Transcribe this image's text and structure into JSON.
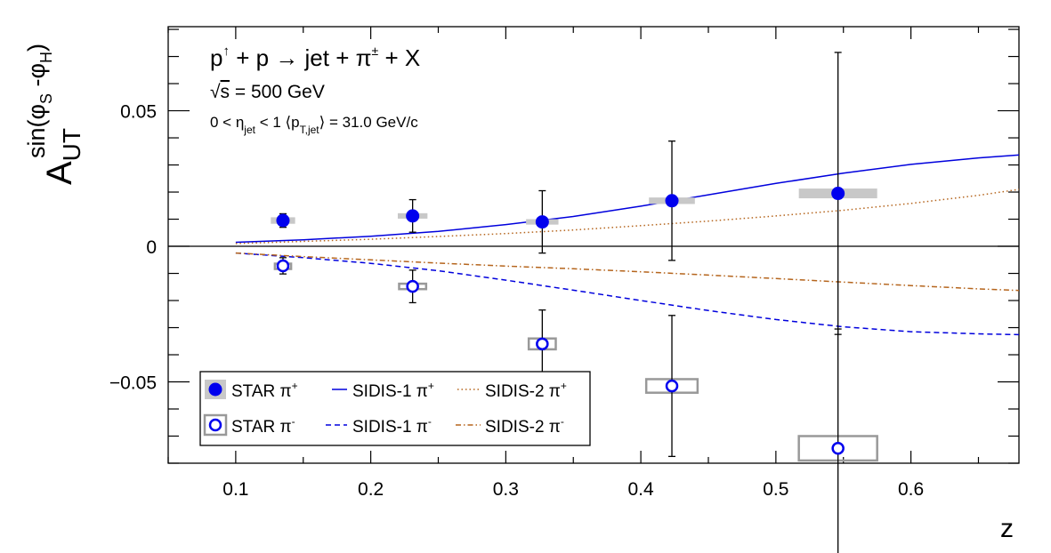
{
  "chart_data": {
    "type": "scatter",
    "xlabel": "z",
    "ylabel": {
      "main": "A",
      "sub": "UT",
      "sup_prefix": "sin(",
      "phi": "φ",
      "s": "S",
      "minus": " -",
      "h": "H",
      "close": ")"
    },
    "xlim": [
      0.05,
      0.68
    ],
    "ylim": [
      -0.08,
      0.081
    ],
    "x_ticks": [
      {
        "v": 0.1,
        "label": "0.1"
      },
      {
        "v": 0.2,
        "label": "0.2"
      },
      {
        "v": 0.3,
        "label": "0.3"
      },
      {
        "v": 0.4,
        "label": "0.4"
      },
      {
        "v": 0.5,
        "label": "0.5"
      },
      {
        "v": 0.6,
        "label": "0.6"
      }
    ],
    "y_ticks": [
      {
        "v": 0.05,
        "label": "0.05"
      },
      {
        "v": 0,
        "label": "0"
      },
      {
        "v": -0.05,
        "label": "−0.05"
      }
    ],
    "annotations": {
      "line1": {
        "p": "p",
        "up": "↑",
        "rest": " + p → jet + π",
        "pm": "±",
        "end": " + X"
      },
      "line2": {
        "sqrt": "√",
        "s": "s",
        "rest": " = 500 GeV"
      },
      "line3": {
        "a": "0 < η",
        "jet": "jet",
        "b": " < 1 ⟨p",
        "tjet": "T,jet",
        "c": "⟩ = 31.0 GeV/c"
      }
    },
    "legend": {
      "placement": "bottom-left",
      "entries": [
        {
          "label": "STAR π",
          "sup": "+"
        },
        {
          "label": "SIDIS-1 π",
          "sup": "+"
        },
        {
          "label": "SIDIS-2 π",
          "sup": "+"
        },
        {
          "label": "STAR π",
          "sup": "-"
        },
        {
          "label": "SIDIS-1 π",
          "sup": "-"
        },
        {
          "label": "SIDIS-2 π",
          "sup": "-"
        }
      ]
    },
    "colors": {
      "star": "#0000ee",
      "sidis1": "#0000dd",
      "sidis2": "#b5651d",
      "syst_fill": "#c8c8c8",
      "syst_box": "#999999"
    },
    "series": [
      {
        "name": "STAR π+",
        "points": [
          {
            "x": 0.135,
            "y": 0.0095,
            "err": 0.0025,
            "sys_dx": 0.009,
            "sys_dy": 0.0012
          },
          {
            "x": 0.231,
            "y": 0.0112,
            "err": 0.006,
            "sys_dx": 0.011,
            "sys_dy": 0.001
          },
          {
            "x": 0.327,
            "y": 0.009,
            "err": 0.0115,
            "sys_dx": 0.012,
            "sys_dy": 0.001
          },
          {
            "x": 0.423,
            "y": 0.0168,
            "err": 0.022,
            "sys_dx": 0.017,
            "sys_dy": 0.0012
          },
          {
            "x": 0.546,
            "y": 0.0195,
            "err": 0.052,
            "sys_dx": 0.029,
            "sys_dy": 0.0018
          }
        ]
      },
      {
        "name": "STAR π-",
        "points": [
          {
            "x": 0.135,
            "y": -0.0072,
            "err": 0.003,
            "sys_dx": 0.006,
            "sys_dy": 0.0008
          },
          {
            "x": 0.231,
            "y": -0.0148,
            "err": 0.006,
            "sys_dx": 0.01,
            "sys_dy": 0.001
          },
          {
            "x": 0.327,
            "y": -0.036,
            "err": 0.0125,
            "sys_dx": 0.01,
            "sys_dy": 0.002
          },
          {
            "x": 0.423,
            "y": -0.0515,
            "err": 0.026,
            "sys_dx": 0.019,
            "sys_dy": 0.0025
          },
          {
            "x": 0.546,
            "y": -0.0745,
            "err": 0.044,
            "sys_dx": 0.029,
            "sys_dy": 0.0045
          }
        ]
      },
      {
        "name": "SIDIS-1 π+",
        "line": {
          "x": [
            0.1,
            0.15,
            0.2,
            0.25,
            0.3,
            0.35,
            0.4,
            0.45,
            0.5,
            0.55,
            0.6,
            0.65,
            0.68
          ],
          "y": [
            0.0015,
            0.0024,
            0.0037,
            0.0055,
            0.008,
            0.011,
            0.0148,
            0.019,
            0.0232,
            0.027,
            0.0302,
            0.0326,
            0.0337
          ]
        }
      },
      {
        "name": "SIDIS-2 π+",
        "line": {
          "x": [
            0.1,
            0.15,
            0.2,
            0.25,
            0.3,
            0.35,
            0.4,
            0.45,
            0.5,
            0.55,
            0.6,
            0.65,
            0.68
          ],
          "y": [
            0.001,
            0.0018,
            0.0026,
            0.0036,
            0.0047,
            0.006,
            0.0076,
            0.0093,
            0.0112,
            0.0133,
            0.0158,
            0.0188,
            0.021
          ]
        }
      },
      {
        "name": "SIDIS-1 π-",
        "line": {
          "x": [
            0.1,
            0.15,
            0.2,
            0.25,
            0.3,
            0.35,
            0.4,
            0.45,
            0.5,
            0.55,
            0.6,
            0.65,
            0.68
          ],
          "y": [
            -0.0025,
            -0.0042,
            -0.0063,
            -0.009,
            -0.0125,
            -0.0162,
            -0.02,
            -0.0237,
            -0.027,
            -0.0297,
            -0.0315,
            -0.0323,
            -0.0326
          ]
        }
      },
      {
        "name": "SIDIS-2 π-",
        "line": {
          "x": [
            0.1,
            0.15,
            0.2,
            0.25,
            0.3,
            0.35,
            0.4,
            0.45,
            0.5,
            0.55,
            0.6,
            0.65,
            0.68
          ],
          "y": [
            -0.0025,
            -0.0038,
            -0.005,
            -0.0062,
            -0.0073,
            -0.0083,
            -0.0094,
            -0.0106,
            -0.0119,
            -0.0132,
            -0.0145,
            -0.0157,
            -0.0163
          ]
        }
      }
    ]
  }
}
